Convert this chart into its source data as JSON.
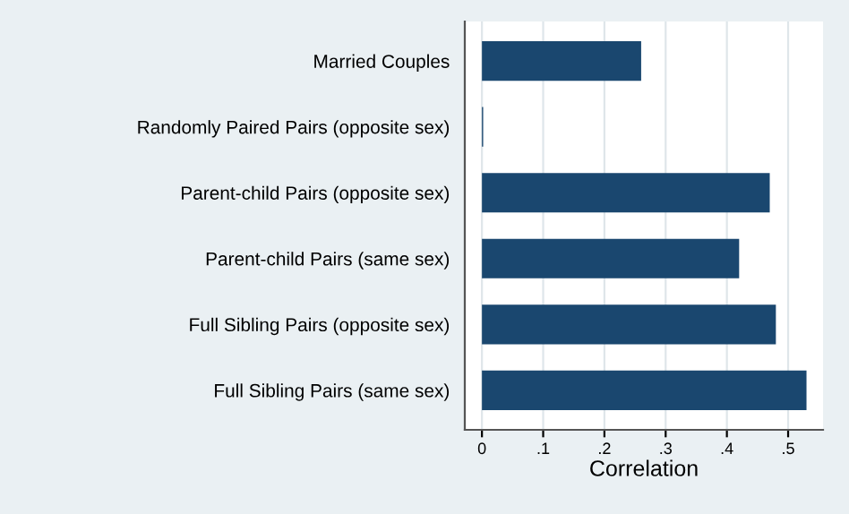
{
  "chart_data": {
    "type": "bar",
    "orientation": "horizontal",
    "xlabel": "Correlation",
    "categories": [
      "Married Couples",
      "Randomly Paired Pairs (opposite sex)",
      "Parent-child Pairs (opposite sex)",
      "Parent-child Pairs (same sex)",
      "Full Sibling Pairs (opposite sex)",
      "Full Sibling Pairs (same sex)"
    ],
    "values": [
      0.26,
      0.002,
      0.47,
      0.42,
      0.48,
      0.53
    ],
    "color": "#1a476f",
    "xlim": [
      -0.028,
      0.557
    ],
    "xticks": [
      {
        "value": 0,
        "label": "0"
      },
      {
        "value": 0.1,
        "label": ".1"
      },
      {
        "value": 0.2,
        "label": ".2"
      },
      {
        "value": 0.3,
        "label": ".3"
      },
      {
        "value": 0.4,
        "label": ".4"
      },
      {
        "value": 0.5,
        "label": ".5"
      }
    ],
    "grid": "x"
  }
}
